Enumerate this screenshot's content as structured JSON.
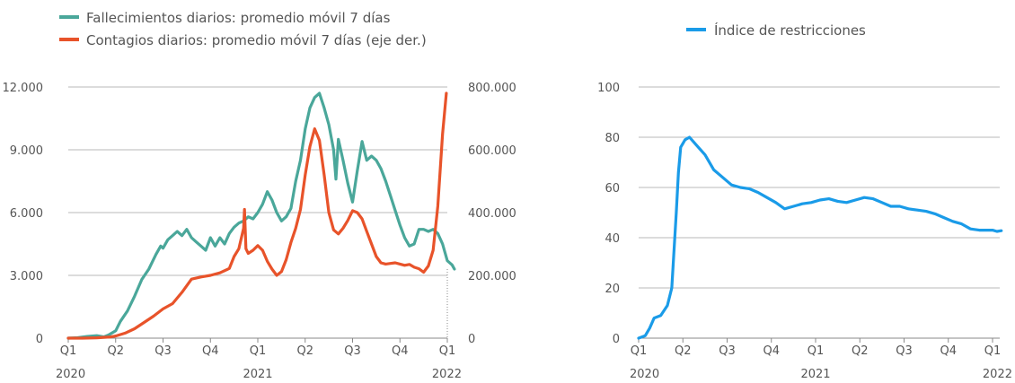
{
  "chart_data": [
    {
      "type": "line",
      "title": "",
      "quarter_labels": [
        "Q1",
        "Q2",
        "Q3",
        "Q4",
        "Q1",
        "Q2",
        "Q3",
        "Q4",
        "Q1"
      ],
      "year_labels": [
        "2020",
        "2021",
        "2022"
      ],
      "y_left": {
        "min": 0,
        "max": 12000,
        "ticks": [
          0,
          3000,
          6000,
          9000,
          12000
        ],
        "tick_labels": [
          "0",
          "3.000",
          "6.000",
          "9.000",
          "12.000"
        ]
      },
      "y_right": {
        "min": 0,
        "max": 800000,
        "ticks": [
          0,
          200000,
          400000,
          600000,
          800000
        ],
        "tick_labels": [
          "0",
          "200.000",
          "400.000",
          "600.000",
          "800.000"
        ]
      },
      "grid": true,
      "legend_position": "top-left",
      "series": [
        {
          "name": "Fallecimientos diarios: promedio móvil 7 días",
          "axis": "left",
          "color": "#4aa79a",
          "points": [
            [
              0,
              0
            ],
            [
              0.2,
              20
            ],
            [
              0.4,
              80
            ],
            [
              0.6,
              120
            ],
            [
              0.75,
              60
            ],
            [
              0.85,
              150
            ],
            [
              1,
              350
            ],
            [
              1.1,
              800
            ],
            [
              1.25,
              1300
            ],
            [
              1.4,
              2000
            ],
            [
              1.55,
              2800
            ],
            [
              1.7,
              3300
            ],
            [
              1.85,
              4000
            ],
            [
              1.95,
              4400
            ],
            [
              2.0,
              4300
            ],
            [
              2.1,
              4700
            ],
            [
              2.2,
              4900
            ],
            [
              2.3,
              5100
            ],
            [
              2.4,
              4900
            ],
            [
              2.5,
              5200
            ],
            [
              2.6,
              4800
            ],
            [
              2.7,
              4600
            ],
            [
              2.8,
              4400
            ],
            [
              2.9,
              4200
            ],
            [
              3.0,
              4800
            ],
            [
              3.1,
              4400
            ],
            [
              3.2,
              4800
            ],
            [
              3.3,
              4500
            ],
            [
              3.4,
              5000
            ],
            [
              3.5,
              5300
            ],
            [
              3.6,
              5500
            ],
            [
              3.7,
              5600
            ],
            [
              3.8,
              5800
            ],
            [
              3.9,
              5700
            ],
            [
              4.0,
              6000
            ],
            [
              4.1,
              6400
            ],
            [
              4.2,
              7000
            ],
            [
              4.3,
              6600
            ],
            [
              4.4,
              6000
            ],
            [
              4.5,
              5600
            ],
            [
              4.6,
              5800
            ],
            [
              4.7,
              6200
            ],
            [
              4.8,
              7500
            ],
            [
              4.9,
              8500
            ],
            [
              5.0,
              10000
            ],
            [
              5.1,
              11000
            ],
            [
              5.2,
              11500
            ],
            [
              5.3,
              11700
            ],
            [
              5.4,
              11000
            ],
            [
              5.5,
              10200
            ],
            [
              5.6,
              9000
            ],
            [
              5.65,
              7600
            ],
            [
              5.7,
              9500
            ],
            [
              5.8,
              8500
            ],
            [
              5.9,
              7400
            ],
            [
              6.0,
              6500
            ],
            [
              6.1,
              8000
            ],
            [
              6.2,
              9400
            ],
            [
              6.3,
              8500
            ],
            [
              6.4,
              8700
            ],
            [
              6.5,
              8500
            ],
            [
              6.6,
              8100
            ],
            [
              6.7,
              7500
            ],
            [
              6.8,
              6800
            ],
            [
              6.9,
              6100
            ],
            [
              7.0,
              5400
            ],
            [
              7.1,
              4800
            ],
            [
              7.2,
              4400
            ],
            [
              7.3,
              4500
            ],
            [
              7.4,
              5200
            ],
            [
              7.5,
              5200
            ],
            [
              7.6,
              5100
            ],
            [
              7.7,
              5200
            ],
            [
              7.8,
              5000
            ],
            [
              7.9,
              4500
            ],
            [
              8.0,
              3700
            ],
            [
              8.1,
              3500
            ],
            [
              8.15,
              3300
            ]
          ]
        },
        {
          "name": "Contagios diarios: promedio móvil 7 días (eje der.)",
          "axis": "right",
          "color": "#e8532a",
          "points": [
            [
              0,
              0
            ],
            [
              0.3,
              0
            ],
            [
              0.6,
              1000
            ],
            [
              0.9,
              4000
            ],
            [
              1.0,
              7000
            ],
            [
              1.2,
              16000
            ],
            [
              1.4,
              30000
            ],
            [
              1.6,
              50000
            ],
            [
              1.8,
              70000
            ],
            [
              2.0,
              93000
            ],
            [
              2.2,
              110000
            ],
            [
              2.4,
              146000
            ],
            [
              2.6,
              188000
            ],
            [
              2.8,
              195000
            ],
            [
              3.0,
              200000
            ],
            [
              3.2,
              208000
            ],
            [
              3.4,
              222000
            ],
            [
              3.5,
              260000
            ],
            [
              3.6,
              285000
            ],
            [
              3.7,
              350000
            ],
            [
              3.72,
              410000
            ],
            [
              3.75,
              285000
            ],
            [
              3.8,
              270000
            ],
            [
              3.9,
              280000
            ],
            [
              4.0,
              295000
            ],
            [
              4.1,
              280000
            ],
            [
              4.2,
              245000
            ],
            [
              4.3,
              220000
            ],
            [
              4.4,
              200000
            ],
            [
              4.5,
              212000
            ],
            [
              4.6,
              250000
            ],
            [
              4.7,
              305000
            ],
            [
              4.8,
              350000
            ],
            [
              4.9,
              410000
            ],
            [
              5.0,
              520000
            ],
            [
              5.1,
              610000
            ],
            [
              5.2,
              667000
            ],
            [
              5.3,
              630000
            ],
            [
              5.4,
              520000
            ],
            [
              5.5,
              400000
            ],
            [
              5.6,
              345000
            ],
            [
              5.7,
              332000
            ],
            [
              5.8,
              350000
            ],
            [
              5.9,
              375000
            ],
            [
              6.0,
              406000
            ],
            [
              6.1,
              400000
            ],
            [
              6.2,
              380000
            ],
            [
              6.3,
              340000
            ],
            [
              6.4,
              300000
            ],
            [
              6.5,
              260000
            ],
            [
              6.6,
              240000
            ],
            [
              6.7,
              236000
            ],
            [
              6.8,
              238000
            ],
            [
              6.9,
              240000
            ],
            [
              7.0,
              236000
            ],
            [
              7.1,
              232000
            ],
            [
              7.2,
              235000
            ],
            [
              7.3,
              226000
            ],
            [
              7.4,
              221000
            ],
            [
              7.5,
              210000
            ],
            [
              7.6,
              230000
            ],
            [
              7.7,
              280000
            ],
            [
              7.8,
              420000
            ],
            [
              7.9,
              650000
            ],
            [
              7.98,
              780000
            ]
          ]
        }
      ]
    },
    {
      "type": "line",
      "title": "",
      "quarter_labels": [
        "Q1",
        "Q2",
        "Q3",
        "Q4",
        "Q1",
        "Q2",
        "Q3",
        "Q4",
        "Q1"
      ],
      "year_labels": [
        "2020",
        "2021",
        "2022"
      ],
      "y": {
        "min": 0,
        "max": 100,
        "ticks": [
          0,
          20,
          40,
          60,
          80,
          100
        ],
        "tick_labels": [
          "0",
          "20",
          "40",
          "60",
          "80",
          "100"
        ]
      },
      "grid": true,
      "legend_position": "top-center",
      "series": [
        {
          "name": "Índice de restricciones",
          "color": "#1a9be8",
          "points": [
            [
              0,
              0
            ],
            [
              0.15,
              1
            ],
            [
              0.25,
              4
            ],
            [
              0.35,
              8
            ],
            [
              0.5,
              9
            ],
            [
              0.65,
              13
            ],
            [
              0.75,
              20
            ],
            [
              0.85,
              50
            ],
            [
              0.9,
              66
            ],
            [
              0.95,
              76
            ],
            [
              1.05,
              79
            ],
            [
              1.15,
              80
            ],
            [
              1.3,
              77
            ],
            [
              1.5,
              73
            ],
            [
              1.7,
              67
            ],
            [
              1.9,
              64
            ],
            [
              2.1,
              61
            ],
            [
              2.3,
              60
            ],
            [
              2.5,
              59.5
            ],
            [
              2.7,
              58
            ],
            [
              2.9,
              56
            ],
            [
              3.1,
              54
            ],
            [
              3.3,
              51.5
            ],
            [
              3.5,
              52.5
            ],
            [
              3.7,
              53.5
            ],
            [
              3.9,
              54
            ],
            [
              4.1,
              55
            ],
            [
              4.3,
              55.5
            ],
            [
              4.5,
              54.5
            ],
            [
              4.7,
              54
            ],
            [
              4.9,
              55
            ],
            [
              5.1,
              56
            ],
            [
              5.3,
              55.5
            ],
            [
              5.5,
              54
            ],
            [
              5.7,
              52.5
            ],
            [
              5.9,
              52.5
            ],
            [
              6.1,
              51.5
            ],
            [
              6.3,
              51
            ],
            [
              6.5,
              50.5
            ],
            [
              6.7,
              49.5
            ],
            [
              6.9,
              48
            ],
            [
              7.1,
              46.5
            ],
            [
              7.3,
              45.5
            ],
            [
              7.5,
              43.5
            ],
            [
              7.7,
              43
            ],
            [
              7.9,
              43
            ],
            [
              8.0,
              43
            ],
            [
              8.1,
              42.5
            ],
            [
              8.2,
              42.8
            ]
          ]
        }
      ]
    }
  ]
}
